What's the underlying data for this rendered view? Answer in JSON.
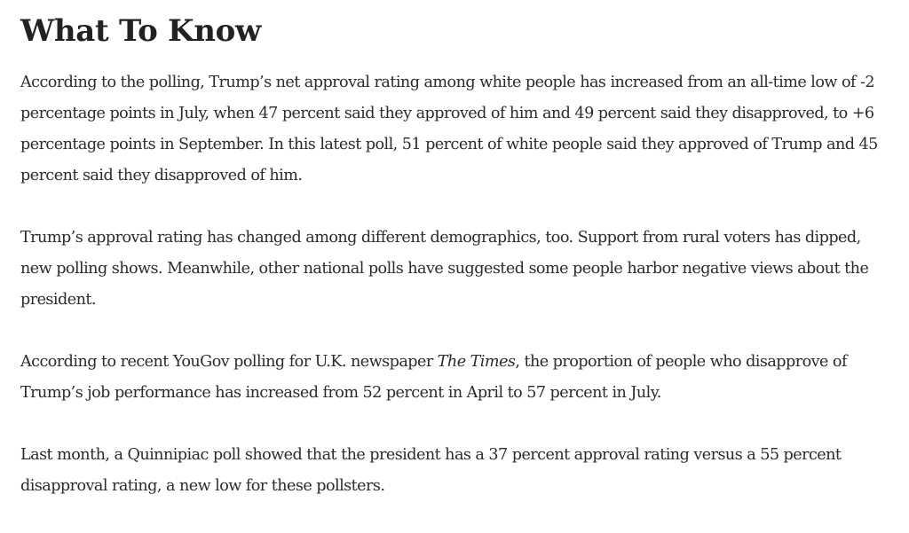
{
  "article": {
    "heading": "What To Know",
    "paragraphs": [
      {
        "text": "According to the polling, Trump’s net approval rating among white people has increased from an all-time low of -2 percentage points in July, when 47 percent said they approved of him and 49 percent said they disapproved, to +6 percentage points in September. In this latest poll, 51 percent of white people said they approved of Trump and 45 percent said they disapproved of him."
      },
      {
        "text": "Trump’s approval rating has changed among different demographics, too. Support from rural voters has dipped, new polling shows. Meanwhile, other national polls have suggested some people harbor negative views about the president."
      },
      {
        "before": "According to recent YouGov polling for U.K. newspaper ",
        "italic": "The Times",
        "after": ", the proportion of people who disapprove of Trump’s job performance has increased from 52 percent in April to 57 percent in July."
      },
      {
        "text": "Last month, a Quinnipiac poll showed that the president has a 37 percent approval rating versus a 55 percent disapproval rating, a new low for these pollsters."
      }
    ]
  }
}
